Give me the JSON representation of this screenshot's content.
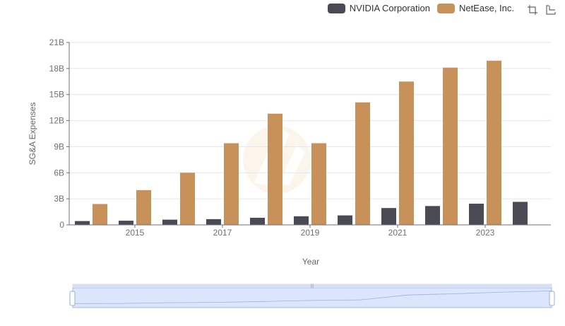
{
  "legend": {
    "items": [
      {
        "name": "NVIDIA Corporation",
        "color": "#4a4a55"
      },
      {
        "name": "NetEase, Inc.",
        "color": "#c8915a"
      }
    ]
  },
  "toolbox": {
    "icons": [
      "zoom-icon",
      "restore-icon"
    ]
  },
  "chart_data": {
    "type": "bar",
    "xlabel": "Year",
    "ylabel": "SG&A Expenses",
    "x": [
      2014,
      2015,
      2016,
      2017,
      2018,
      2019,
      2020,
      2021,
      2022,
      2023,
      2024
    ],
    "x_tick_labels": [
      "2015",
      "2017",
      "2019",
      "2021",
      "2023"
    ],
    "y_tick_labels": [
      "0",
      "3B",
      "6B",
      "9B",
      "12B",
      "15B",
      "18B",
      "21B"
    ],
    "ylim": [
      0,
      21
    ],
    "y_unit": "B",
    "grid": true,
    "legend_position": "top-right",
    "series": [
      {
        "name": "NVIDIA Corporation",
        "color": "#4a4a55",
        "values": [
          0.44,
          0.48,
          0.6,
          0.66,
          0.82,
          0.99,
          1.09,
          1.94,
          2.17,
          2.44,
          2.65
        ]
      },
      {
        "name": "NetEase, Inc.",
        "color": "#c8915a",
        "values": [
          2.4,
          4.0,
          6.0,
          9.4,
          12.8,
          9.4,
          14.1,
          16.5,
          18.1,
          18.9,
          null
        ]
      }
    ]
  }
}
